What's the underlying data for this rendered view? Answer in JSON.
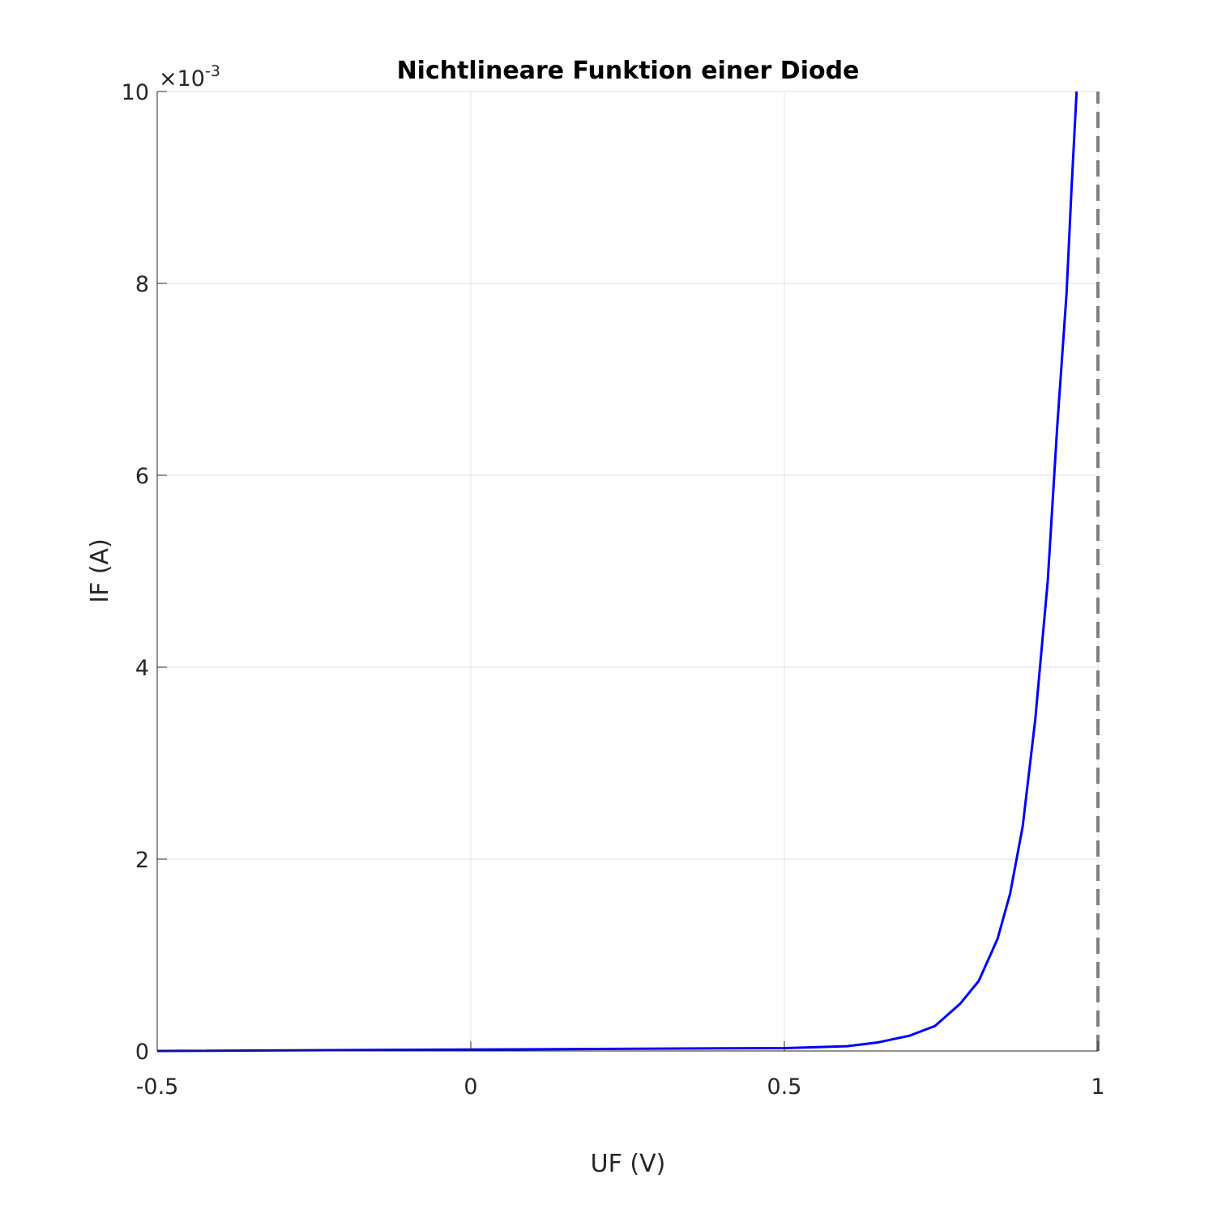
{
  "chart_data": {
    "type": "line",
    "title": "Nichtlineare Funktion einer Diode",
    "xlabel": "UF (V)",
    "ylabel": "IF (A)",
    "xlim": [
      -0.5,
      1
    ],
    "ylim": [
      0,
      0.01
    ],
    "xticks": [
      "-0.5",
      "0",
      "0.5",
      "1"
    ],
    "yticks": [
      "0",
      "2",
      "4",
      "6",
      "8",
      "10"
    ],
    "y_exponent_base": "×10",
    "y_exponent_power": "-3",
    "grid": true,
    "series": [
      {
        "color": "#0000ff",
        "style": "solid",
        "x": [
          -0.5,
          0.5,
          0.6,
          0.65,
          0.7,
          0.74,
          0.78,
          0.81,
          0.84,
          0.86,
          0.88,
          0.9,
          0.92,
          0.935,
          0.95,
          0.958,
          0.966
        ],
        "y": [
          0,
          3e-05,
          5e-05,
          9e-05,
          0.00016,
          0.00026,
          0.00049,
          0.00073,
          0.00117,
          0.00164,
          0.00234,
          0.00345,
          0.0049,
          0.0065,
          0.0079,
          0.009,
          0.01
        ]
      },
      {
        "color": "#808080",
        "style": "dashed",
        "x": [
          1,
          1
        ],
        "y": [
          0,
          0.01
        ]
      }
    ]
  }
}
